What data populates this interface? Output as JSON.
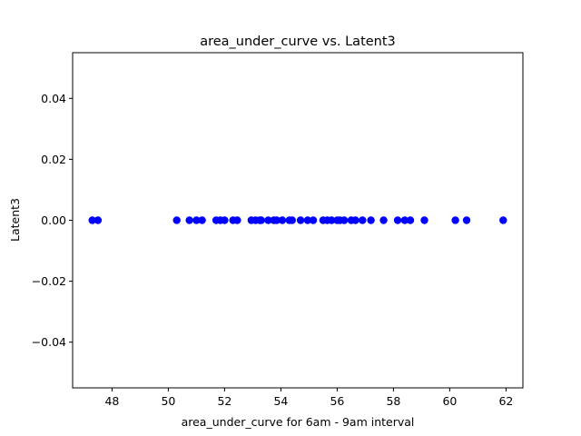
{
  "chart_data": {
    "type": "scatter",
    "title": "area_under_curve vs. Latent3",
    "xlabel": "area_under_curve for 6am - 9am interval",
    "ylabel": "Latent3",
    "xlim": [
      46.6,
      62.6
    ],
    "ylim": [
      -0.055,
      0.055
    ],
    "x_ticks": [
      48,
      50,
      52,
      54,
      56,
      58,
      60,
      62
    ],
    "y_ticks": [
      -0.04,
      -0.02,
      0.0,
      0.02,
      0.04
    ],
    "x_tick_labels": [
      "48",
      "50",
      "52",
      "54",
      "56",
      "58",
      "60",
      "62"
    ],
    "y_tick_labels": [
      "−0.04",
      "−0.02",
      "0.00",
      "0.02",
      "0.04"
    ],
    "grid": false,
    "marker_color": "#0000ff",
    "points": [
      {
        "x": 47.3,
        "y": 0
      },
      {
        "x": 47.5,
        "y": 0
      },
      {
        "x": 50.3,
        "y": 0
      },
      {
        "x": 50.75,
        "y": 0
      },
      {
        "x": 51.0,
        "y": 0
      },
      {
        "x": 51.2,
        "y": 0
      },
      {
        "x": 51.7,
        "y": 0
      },
      {
        "x": 51.85,
        "y": 0
      },
      {
        "x": 52.0,
        "y": 0
      },
      {
        "x": 52.3,
        "y": 0
      },
      {
        "x": 52.45,
        "y": 0
      },
      {
        "x": 52.95,
        "y": 0
      },
      {
        "x": 53.1,
        "y": 0
      },
      {
        "x": 53.25,
        "y": 0
      },
      {
        "x": 53.3,
        "y": 0
      },
      {
        "x": 53.55,
        "y": 0
      },
      {
        "x": 53.75,
        "y": 0
      },
      {
        "x": 53.85,
        "y": 0
      },
      {
        "x": 54.05,
        "y": 0
      },
      {
        "x": 54.3,
        "y": 0
      },
      {
        "x": 54.4,
        "y": 0
      },
      {
        "x": 54.7,
        "y": 0
      },
      {
        "x": 54.95,
        "y": 0
      },
      {
        "x": 55.15,
        "y": 0
      },
      {
        "x": 55.5,
        "y": 0
      },
      {
        "x": 55.65,
        "y": 0
      },
      {
        "x": 55.8,
        "y": 0
      },
      {
        "x": 56.0,
        "y": 0
      },
      {
        "x": 56.1,
        "y": 0
      },
      {
        "x": 56.25,
        "y": 0
      },
      {
        "x": 56.5,
        "y": 0
      },
      {
        "x": 56.65,
        "y": 0
      },
      {
        "x": 56.9,
        "y": 0
      },
      {
        "x": 57.2,
        "y": 0
      },
      {
        "x": 57.65,
        "y": 0
      },
      {
        "x": 58.15,
        "y": 0
      },
      {
        "x": 58.4,
        "y": 0
      },
      {
        "x": 58.6,
        "y": 0
      },
      {
        "x": 59.1,
        "y": 0
      },
      {
        "x": 60.2,
        "y": 0
      },
      {
        "x": 60.6,
        "y": 0
      },
      {
        "x": 61.9,
        "y": 0
      }
    ]
  }
}
